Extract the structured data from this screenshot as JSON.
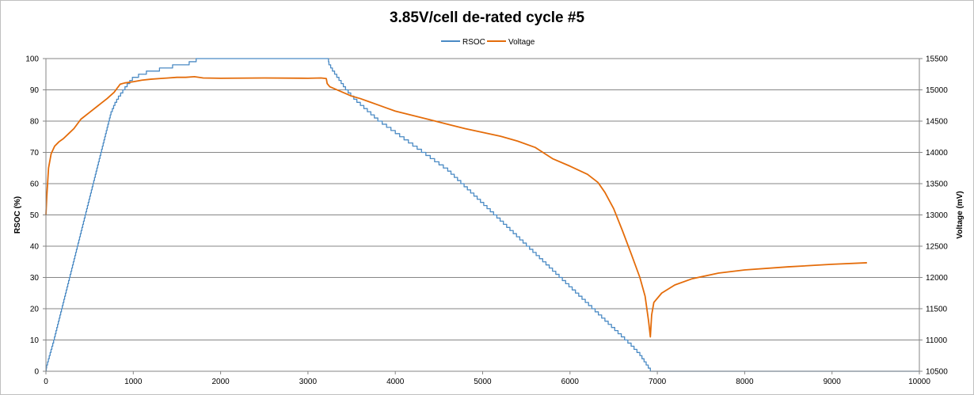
{
  "chart_data": {
    "type": "line",
    "title": "3.85V/cell de-rated cycle #5",
    "xlabel": "",
    "ylabel": "RSOC (%)",
    "y2label": "Voltage (mV)",
    "xlim": [
      0,
      10000
    ],
    "ylim": [
      0,
      100
    ],
    "y2lim": [
      10500,
      15500
    ],
    "x_ticks": [
      0,
      1000,
      2000,
      3000,
      4000,
      5000,
      6000,
      7000,
      8000,
      9000,
      10000
    ],
    "y_ticks": [
      0,
      10,
      20,
      30,
      40,
      50,
      60,
      70,
      80,
      90,
      100
    ],
    "y2_ticks": [
      10500,
      11000,
      11500,
      12000,
      12500,
      13000,
      13500,
      14000,
      14500,
      15000,
      15500
    ],
    "grid": "horizontal",
    "legend_position": "top-center",
    "series": [
      {
        "name": "RSOC",
        "axis": "left",
        "color": "#4a8ac4",
        "step": true,
        "points": [
          [
            0,
            0
          ],
          [
            8,
            2
          ],
          [
            88,
            10
          ],
          [
            178,
            20
          ],
          [
            268,
            30
          ],
          [
            358,
            40
          ],
          [
            448,
            50
          ],
          [
            538,
            60
          ],
          [
            628,
            70
          ],
          [
            700,
            78
          ],
          [
            745,
            83
          ],
          [
            790,
            86
          ],
          [
            830,
            88
          ],
          [
            880,
            90
          ],
          [
            930,
            92
          ],
          [
            990,
            94
          ],
          [
            1060,
            95
          ],
          [
            1150,
            96
          ],
          [
            1300,
            97
          ],
          [
            1450,
            98
          ],
          [
            1640,
            99
          ],
          [
            1720,
            100
          ],
          [
            3230,
            100
          ],
          [
            3240,
            98
          ],
          [
            3280,
            96
          ],
          [
            3330,
            94
          ],
          [
            3380,
            92
          ],
          [
            3430,
            90
          ],
          [
            3490,
            88
          ],
          [
            3560,
            86
          ],
          [
            3640,
            84
          ],
          [
            3720,
            82
          ],
          [
            3800,
            80
          ],
          [
            3900,
            78
          ],
          [
            4000,
            76
          ],
          [
            4100,
            74
          ],
          [
            4200,
            72
          ],
          [
            4300,
            70
          ],
          [
            4450,
            67
          ],
          [
            4600,
            64
          ],
          [
            4750,
            60
          ],
          [
            4900,
            56
          ],
          [
            5050,
            52
          ],
          [
            5200,
            48
          ],
          [
            5350,
            44
          ],
          [
            5500,
            40
          ],
          [
            5650,
            36
          ],
          [
            5800,
            32
          ],
          [
            5950,
            28
          ],
          [
            6100,
            24
          ],
          [
            6250,
            20
          ],
          [
            6400,
            16
          ],
          [
            6550,
            12
          ],
          [
            6700,
            8
          ],
          [
            6800,
            5
          ],
          [
            6920,
            0
          ],
          [
            10000,
            0
          ]
        ]
      },
      {
        "name": "Voltage",
        "axis": "right",
        "color": "#e46c0a",
        "step": false,
        "points": [
          [
            0,
            13000
          ],
          [
            10,
            13300
          ],
          [
            30,
            13750
          ],
          [
            60,
            13980
          ],
          [
            100,
            14100
          ],
          [
            150,
            14170
          ],
          [
            200,
            14220
          ],
          [
            260,
            14300
          ],
          [
            320,
            14380
          ],
          [
            400,
            14530
          ],
          [
            500,
            14640
          ],
          [
            600,
            14750
          ],
          [
            700,
            14860
          ],
          [
            780,
            14960
          ],
          [
            850,
            15090
          ],
          [
            900,
            15110
          ],
          [
            1000,
            15130
          ],
          [
            1100,
            15155
          ],
          [
            1200,
            15170
          ],
          [
            1300,
            15180
          ],
          [
            1400,
            15190
          ],
          [
            1500,
            15200
          ],
          [
            1600,
            15200
          ],
          [
            1700,
            15210
          ],
          [
            1800,
            15190
          ],
          [
            2000,
            15185
          ],
          [
            2500,
            15190
          ],
          [
            3000,
            15185
          ],
          [
            3150,
            15190
          ],
          [
            3210,
            15180
          ],
          [
            3220,
            15100
          ],
          [
            3250,
            15050
          ],
          [
            3300,
            15020
          ],
          [
            3400,
            14960
          ],
          [
            3500,
            14900
          ],
          [
            3600,
            14860
          ],
          [
            3700,
            14810
          ],
          [
            3800,
            14760
          ],
          [
            3900,
            14710
          ],
          [
            4000,
            14660
          ],
          [
            4200,
            14590
          ],
          [
            4400,
            14520
          ],
          [
            4600,
            14450
          ],
          [
            4800,
            14380
          ],
          [
            5000,
            14320
          ],
          [
            5200,
            14260
          ],
          [
            5400,
            14180
          ],
          [
            5600,
            14080
          ],
          [
            5800,
            13900
          ],
          [
            6000,
            13780
          ],
          [
            6200,
            13650
          ],
          [
            6320,
            13520
          ],
          [
            6400,
            13360
          ],
          [
            6500,
            13100
          ],
          [
            6600,
            12750
          ],
          [
            6700,
            12380
          ],
          [
            6800,
            12000
          ],
          [
            6860,
            11700
          ],
          [
            6900,
            11300
          ],
          [
            6920,
            11050
          ],
          [
            6935,
            11400
          ],
          [
            6960,
            11600
          ],
          [
            7050,
            11750
          ],
          [
            7200,
            11880
          ],
          [
            7400,
            11980
          ],
          [
            7700,
            12070
          ],
          [
            8000,
            12120
          ],
          [
            8500,
            12170
          ],
          [
            9000,
            12210
          ],
          [
            9400,
            12235
          ]
        ]
      }
    ]
  }
}
